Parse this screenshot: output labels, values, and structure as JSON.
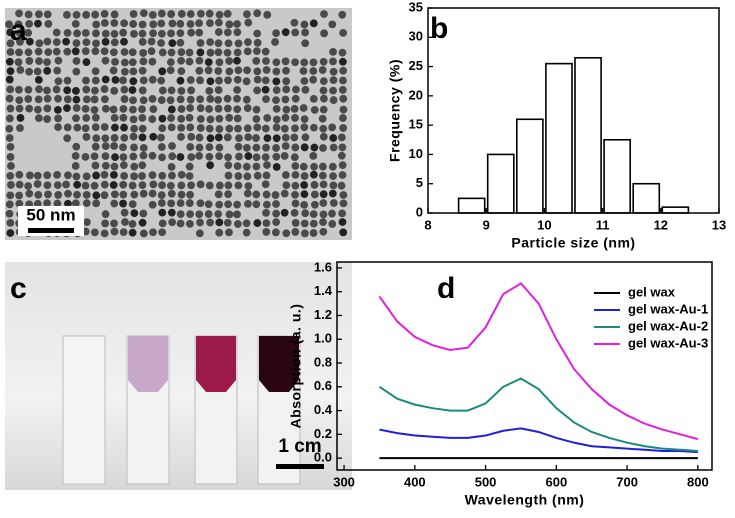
{
  "panels": [
    {
      "label": "a",
      "scale_bar": "50 nm"
    },
    {
      "label": "c",
      "scale_bar": "1 cm"
    }
  ],
  "chart_data": [
    {
      "type": "histogram",
      "panel_label": "b",
      "x_label": "Particle size (nm)",
      "y_label": "Frequency (%)",
      "bins": [
        8.5,
        9,
        9.5,
        10,
        10.5,
        11,
        11.5,
        12,
        12.5
      ],
      "values": [
        2.5,
        10,
        16,
        25.5,
        26.5,
        12.5,
        5,
        1
      ],
      "color": "#ffffff",
      "xlim": [
        8,
        13
      ],
      "xticks": [
        8,
        9,
        10,
        11,
        12,
        13
      ],
      "ylim": [
        0,
        35
      ],
      "yticks": [
        0,
        5,
        10,
        15,
        20,
        25,
        30,
        35
      ]
    },
    {
      "type": "line",
      "panel_label": "d",
      "x_label": "Wavelength (nm)",
      "y_label": "Absorption (a. u.)",
      "x": [
        350,
        375,
        400,
        425,
        450,
        475,
        500,
        525,
        550,
        575,
        600,
        625,
        650,
        675,
        700,
        725,
        750,
        775,
        800
      ],
      "series": [
        {
          "name": "gel wax",
          "color": "#000000",
          "values": [
            0,
            0,
            0,
            0,
            0,
            0,
            0,
            0,
            0,
            0,
            0,
            0,
            0,
            0,
            0,
            0,
            0,
            0,
            0
          ]
        },
        {
          "name": "gel wax-Au-1",
          "color": "#1f1fdc",
          "values": [
            0.24,
            0.21,
            0.19,
            0.18,
            0.17,
            0.17,
            0.19,
            0.23,
            0.25,
            0.22,
            0.17,
            0.13,
            0.1,
            0.09,
            0.08,
            0.07,
            0.06,
            0.06,
            0.05
          ]
        },
        {
          "name": "gel wax-Au-2",
          "color": "#1a8a80",
          "values": [
            0.6,
            0.5,
            0.45,
            0.42,
            0.4,
            0.4,
            0.46,
            0.6,
            0.67,
            0.58,
            0.42,
            0.3,
            0.22,
            0.17,
            0.13,
            0.1,
            0.08,
            0.07,
            0.06
          ]
        },
        {
          "name": "gel wax-Au-3",
          "color": "#e020e0",
          "values": [
            1.36,
            1.15,
            1.02,
            0.95,
            0.91,
            0.93,
            1.1,
            1.38,
            1.47,
            1.3,
            1.0,
            0.75,
            0.58,
            0.45,
            0.36,
            0.29,
            0.24,
            0.2,
            0.16
          ]
        }
      ],
      "xlim": [
        290,
        820
      ],
      "xticks": [
        300,
        400,
        500,
        600,
        700,
        800
      ],
      "ylim": [
        -0.1,
        1.65
      ],
      "yticks": [
        {
          "value": 0,
          "label": "0.0"
        },
        0.2,
        0.4,
        0.6,
        0.8,
        {
          "value": 1,
          "label": "1.0"
        },
        1.2,
        1.4,
        1.6
      ],
      "legend": "top-right"
    }
  ]
}
